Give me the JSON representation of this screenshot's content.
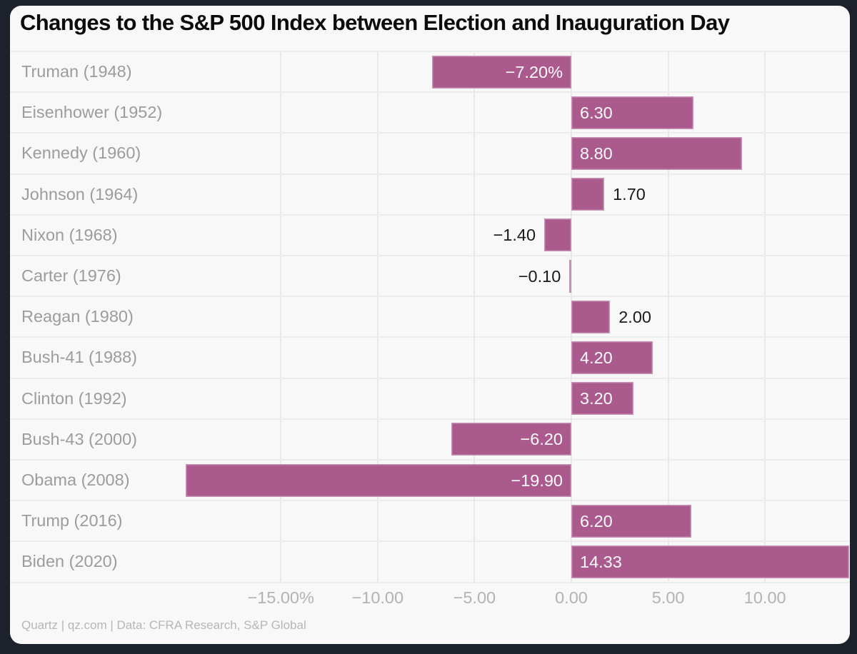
{
  "chart_data": {
    "type": "bar",
    "orientation": "horizontal",
    "title": "Changes to the S&P 500 Index between Election and Inauguration Day",
    "categories": [
      "Truman (1948)",
      "Eisenhower (1952)",
      "Kennedy (1960)",
      "Johnson (1964)",
      "Nixon (1968)",
      "Carter (1976)",
      "Reagan (1980)",
      "Bush-41 (1988)",
      "Clinton (1992)",
      "Bush-43 (2000)",
      "Obama (2008)",
      "Trump (2016)",
      "Biden (2020)"
    ],
    "values": [
      -7.2,
      6.3,
      8.8,
      1.7,
      -1.4,
      -0.1,
      2.0,
      4.2,
      3.2,
      -6.2,
      -19.9,
      6.2,
      14.33
    ],
    "value_labels": [
      "−7.20%",
      "6.30",
      "8.80",
      "1.70",
      "−1.40",
      "−0.10",
      "2.00",
      "4.20",
      "3.20",
      "−6.20",
      "−19.90",
      "6.20",
      "14.33"
    ],
    "x_ticks": [
      -15,
      -10,
      -5,
      0,
      5,
      10
    ],
    "x_tick_labels": [
      "−15.00%",
      "−10.00",
      "−5.00",
      "0.00",
      "5.00",
      "10.00"
    ],
    "xlim": [
      -20.4,
      14.4
    ],
    "grid": true,
    "legend": false,
    "bar_color": "#aa5a8d"
  },
  "footer": {
    "credit": "Quartz | qz.com | Data: CFRA Research, S&P Global"
  },
  "colors": {
    "frame_bg": "#1c212b",
    "card_bg": "#f8f8f8",
    "bar": "#aa5a8d",
    "grid_line": "#e9e9e9",
    "row_divider": "#ececec",
    "title_text": "#0c0c0c",
    "category_text": "#9b9c9f",
    "tick_text": "#b2b3b7",
    "value_inside_text": "#fbfafa",
    "value_outside_text": "#1a1a1a",
    "footer_text": "#b6b6b6"
  }
}
